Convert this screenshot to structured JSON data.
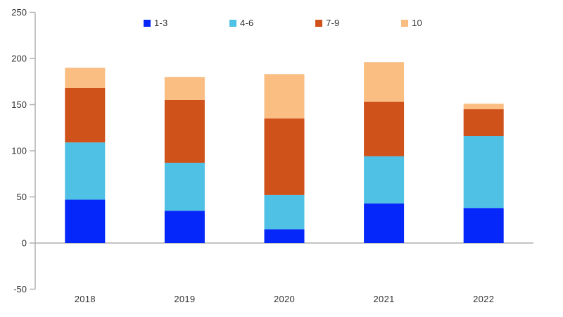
{
  "chart_data": {
    "type": "bar",
    "stacked": true,
    "title": "",
    "xlabel": "",
    "ylabel": "",
    "categories": [
      "2018",
      "2019",
      "2020",
      "2021",
      "2022"
    ],
    "series": [
      {
        "name": "1-3",
        "color": "#0627fa",
        "values": [
          47,
          35,
          15,
          43,
          38
        ]
      },
      {
        "name": "4-6",
        "color": "#4fc1e5",
        "values": [
          62,
          52,
          37,
          51,
          78
        ]
      },
      {
        "name": "7-9",
        "color": "#d0521b",
        "values": [
          59,
          68,
          83,
          59,
          29
        ]
      },
      {
        "name": "10",
        "color": "#fabd82",
        "values": [
          22,
          25,
          48,
          43,
          6
        ]
      }
    ],
    "stack_totals": [
      190,
      180,
      183,
      196,
      151
    ],
    "ylim": [
      -50,
      250
    ],
    "yticks": [
      250,
      200,
      150,
      100,
      50,
      0,
      -50
    ],
    "grid": false,
    "legend_position": "top",
    "axis_color": "#b1b1b1",
    "label_color": "#333333",
    "background_color": "#ffffff"
  }
}
